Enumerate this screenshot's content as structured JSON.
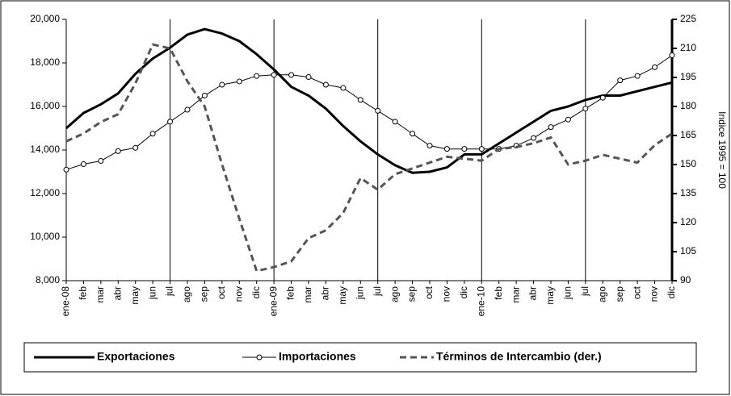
{
  "chart_data": {
    "type": "line",
    "categories": [
      "ene-08",
      "feb",
      "mar",
      "abr",
      "may",
      "jun",
      "jul",
      "ago",
      "sep",
      "oct",
      "nov",
      "dic",
      "ene-09",
      "feb",
      "mar",
      "abr",
      "may",
      "jun",
      "jul",
      "ago",
      "sep",
      "oct",
      "nov",
      "dic",
      "ene-10",
      "feb",
      "mar",
      "abr",
      "may",
      "jun",
      "jul",
      "ago",
      "sep",
      "oct",
      "nov",
      "dic"
    ],
    "series": [
      {
        "name": "Exportaciones",
        "color": "#000000",
        "width": 3,
        "dash": "none",
        "marker": "none",
        "values": [
          15000,
          15700,
          16100,
          16600,
          17500,
          18200,
          18700,
          19300,
          19550,
          19350,
          19000,
          18400,
          17700,
          16900,
          16500,
          15900,
          15100,
          14400,
          13800,
          13300,
          12950,
          13000,
          13200,
          13800,
          13800,
          14300,
          14800,
          15300,
          15800,
          16000,
          16300,
          16500,
          16500,
          16700,
          16900,
          17100
        ]
      },
      {
        "name": "Importaciones",
        "color": "#000000",
        "width": 1,
        "dash": "none",
        "marker": "circle",
        "values": [
          13100,
          13350,
          13500,
          13950,
          14100,
          14750,
          15300,
          15850,
          16500,
          17000,
          17150,
          17400,
          17450,
          17450,
          17350,
          17000,
          16850,
          16300,
          15800,
          15300,
          14750,
          14200,
          14050,
          14050,
          14050,
          14050,
          14200,
          14550,
          15050,
          15400,
          15900,
          16400,
          17200,
          17400,
          17800,
          18350
        ]
      },
      {
        "name": "Términos de Intercambio (der.)",
        "color": "#555555",
        "width": 3,
        "dash": "8 5",
        "marker": "none",
        "axis": "y2",
        "values": [
          162,
          166,
          172,
          176,
          192,
          212,
          210,
          193,
          180,
          150,
          122,
          95,
          97,
          100,
          112,
          116,
          125,
          143,
          137,
          145,
          148,
          151,
          154,
          153,
          152,
          158,
          159,
          161,
          164,
          150,
          152,
          155,
          153,
          151,
          160,
          166
        ]
      }
    ],
    "ylim": [
      8000,
      20000
    ],
    "yticks": [
      {
        "value": 8000,
        "label": "8,000"
      },
      {
        "value": 10000,
        "label": "10,000"
      },
      {
        "value": 12000,
        "label": "12,000"
      },
      {
        "value": 14000,
        "label": "14,000"
      },
      {
        "value": 16000,
        "label": "16,000"
      },
      {
        "value": 18000,
        "label": "18,000"
      },
      {
        "value": 20000,
        "label": "20,000"
      }
    ],
    "y2lim": [
      90,
      225
    ],
    "y2ticks": [
      90,
      105,
      120,
      135,
      150,
      165,
      180,
      195,
      210,
      225
    ],
    "y2label": "Indice 1995 = 100",
    "legend": "bottom"
  }
}
